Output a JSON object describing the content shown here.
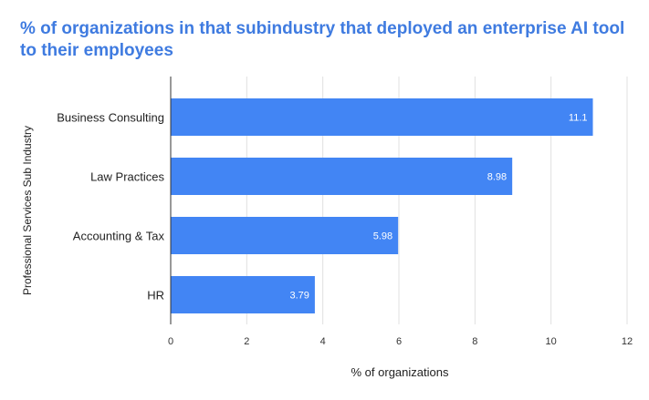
{
  "colors": {
    "title": "#3f7be0",
    "bar": "#4285f4",
    "grid": "#e0e0e0",
    "axis": "#333333"
  },
  "chart_data": {
    "type": "bar",
    "orientation": "horizontal",
    "title": "% of organizations in that subindustry that deployed an enterprise AI tool to their employees",
    "xlabel": "% of organizations",
    "ylabel": "Professional Services Sub Industry",
    "categories": [
      "Business Consulting",
      "Law Practices",
      "Accounting & Tax",
      "HR"
    ],
    "values": [
      11.1,
      8.98,
      5.98,
      3.79
    ],
    "value_labels": [
      "11.1",
      "8.98",
      "5.98",
      "3.79"
    ],
    "xlim": [
      0,
      12
    ],
    "xticks": [
      0,
      2,
      4,
      6,
      8,
      10,
      12
    ],
    "grid": true,
    "legend": "none"
  }
}
